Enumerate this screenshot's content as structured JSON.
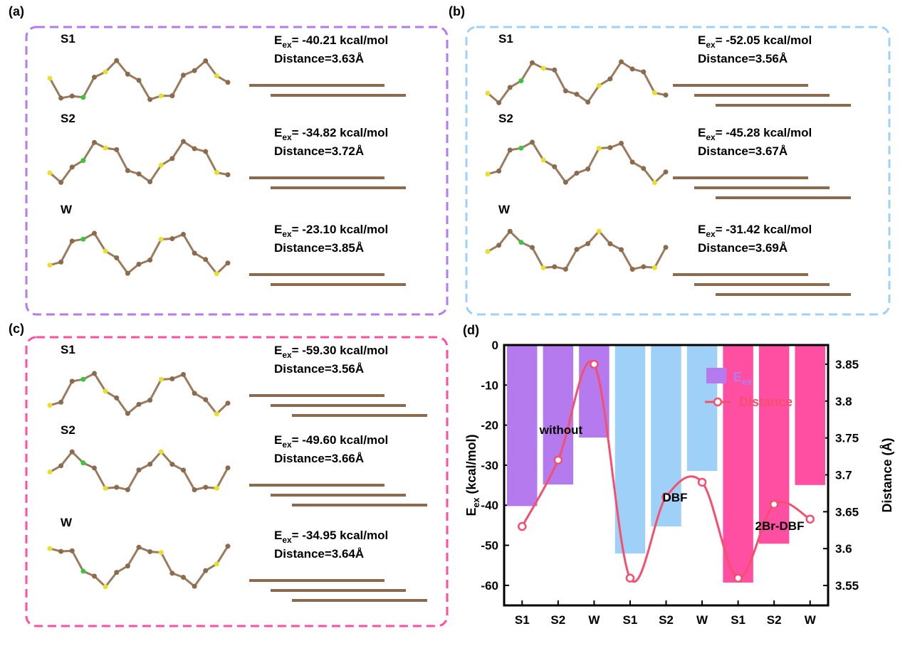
{
  "panels": [
    {
      "label": "(a)",
      "rows": [
        {
          "name": "S1",
          "energy": [
            "E",
            "ex",
            "= -40.21 kcal/mol"
          ],
          "distance": "Distance=3.63Å"
        },
        {
          "name": "S2",
          "energy": [
            "E",
            "ex",
            "= -34.82 kcal/mol"
          ],
          "distance": "Distance=3.72Å"
        },
        {
          "name": "W",
          "energy": [
            "E",
            "ex",
            "= -23.10 kcal/mol"
          ],
          "distance": "Distance=3.85Å"
        }
      ]
    },
    {
      "label": "(b)",
      "rows": [
        {
          "name": "S1",
          "energy": [
            "E",
            "ex",
            "= -52.05 kcal/mol"
          ],
          "distance": "Distance=3.56Å"
        },
        {
          "name": "S2",
          "energy": [
            "E",
            "ex",
            "= -45.28 kcal/mol"
          ],
          "distance": "Distance=3.67Å"
        },
        {
          "name": "W",
          "energy": [
            "E",
            "ex",
            "= -31.42 kcal/mol"
          ],
          "distance": "Distance=3.69Å"
        }
      ]
    },
    {
      "label": "(c)",
      "rows": [
        {
          "name": "S1",
          "energy": [
            "E",
            "ex",
            "= -59.30 kcal/mol"
          ],
          "distance": "Distance=3.56Å"
        },
        {
          "name": "S2",
          "energy": [
            "E",
            "ex",
            "= -49.60 kcal/mol"
          ],
          "distance": "Distance=3.66Å"
        },
        {
          "name": "W",
          "energy": [
            "E",
            "ex",
            "= -34.95 kcal/mol"
          ],
          "distance": "Distance=3.64Å"
        }
      ]
    }
  ],
  "panel_d_label": "(d)",
  "chart_data": {
    "type": "bar_line",
    "categories": [
      "S1",
      "S2",
      "W",
      "S1",
      "S2",
      "W",
      "S1",
      "S2",
      "W"
    ],
    "y_label": [
      "E",
      "ex",
      " (kcal/mol)"
    ],
    "y2_label": "Distance (Å)",
    "annotations": [
      "without",
      "DBF",
      "2Br-DBF"
    ],
    "series": [
      {
        "name": "E",
        "name_sub": "ex",
        "type": "bar",
        "color": "#b57bee",
        "colors": [
          "#b57bee",
          "#b57bee",
          "#b57bee",
          "#9fd0f8",
          "#9fd0f8",
          "#9fd0f8",
          "#ff4fa3",
          "#ff4fa3",
          "#ff4fa3"
        ],
        "values": [
          -40.21,
          -34.82,
          -23.1,
          -52.05,
          -45.28,
          -31.42,
          -59.3,
          -49.6,
          -34.95
        ]
      },
      {
        "name": "Distance",
        "type": "line",
        "axis": "y2",
        "color": "#f4506e",
        "values": [
          3.63,
          3.72,
          3.85,
          3.56,
          3.67,
          3.69,
          3.56,
          3.66,
          3.64
        ]
      }
    ],
    "ylim": [
      -65,
      0
    ],
    "yticks": [
      0,
      -10,
      -20,
      -30,
      -40,
      -50,
      -60
    ],
    "y2lim": [
      3.523,
      3.876
    ],
    "y2ticks": [
      3.55,
      3.6,
      3.65,
      3.7,
      3.75,
      3.8,
      3.85
    ]
  }
}
